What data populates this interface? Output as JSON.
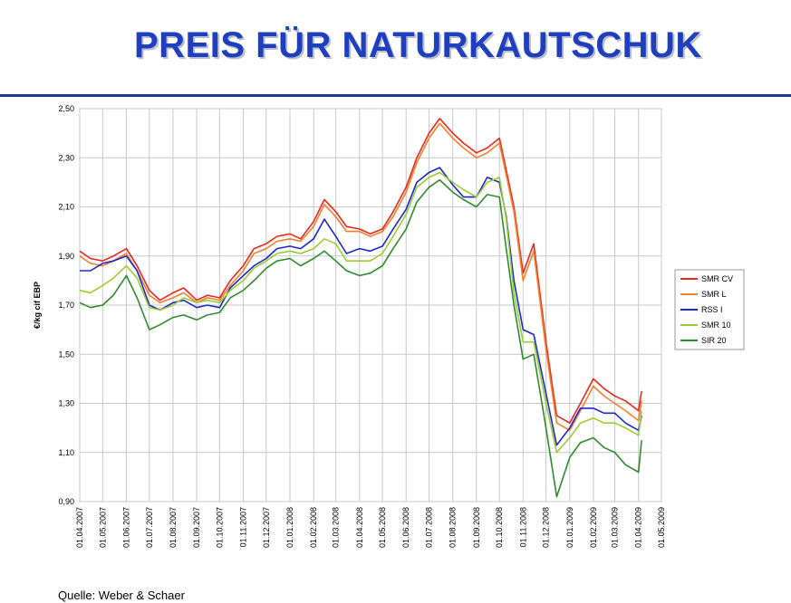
{
  "slide": {
    "title": "PREIS FÜR NATURKAUTSCHUK",
    "source": "Quelle: Weber & Schaer"
  },
  "chart_data": {
    "type": "line",
    "ylabel": "€/kg cif EBP",
    "xlabel": "",
    "ylim": [
      0.9,
      2.5
    ],
    "yticks": [
      0.9,
      1.1,
      1.3,
      1.5,
      1.7,
      1.9,
      2.1,
      2.3,
      2.5
    ],
    "ytick_labels": [
      "0,90",
      "1,10",
      "1,30",
      "1,50",
      "1,70",
      "1,90",
      "2,10",
      "2,30",
      "2,50"
    ],
    "x_range": [
      "2007-04-01",
      "2009-05-01"
    ],
    "x_ticks": [
      "2007-04-01",
      "2007-05-01",
      "2007-06-01",
      "2007-07-01",
      "2007-08-01",
      "2007-09-01",
      "2007-10-01",
      "2007-11-01",
      "2007-12-01",
      "2008-01-01",
      "2008-02-01",
      "2008-03-01",
      "2008-04-01",
      "2008-05-01",
      "2008-06-01",
      "2008-07-01",
      "2008-08-01",
      "2008-09-01",
      "2008-10-01",
      "2008-11-01",
      "2008-12-01",
      "2009-01-01",
      "2009-02-01",
      "2009-03-01",
      "2009-04-01",
      "2009-05-01"
    ],
    "x_tick_labels": [
      "01.04.2007",
      "01.05.2007",
      "01.06.2007",
      "01.07.2007",
      "01.08.2007",
      "01.09.2007",
      "01.10.2007",
      "01.11.2007",
      "01.12.2007",
      "01.01.2008",
      "01.02.2008",
      "01.03.2008",
      "01.04.2008",
      "01.05.2008",
      "01.06.2008",
      "01.07.2008",
      "01.08.2008",
      "01.09.2008",
      "01.10.2008",
      "01.11.2008",
      "01.12.2008",
      "01.01.2009",
      "01.02.2009",
      "01.03.2009",
      "01.04.2009",
      "01.05.2009"
    ],
    "grid": true,
    "legend_position": "right",
    "series": [
      {
        "name": "SMR CV",
        "color": "#e8281e",
        "x": [
          "2007-04-01",
          "2007-04-15",
          "2007-05-01",
          "2007-05-15",
          "2007-06-01",
          "2007-06-15",
          "2007-07-01",
          "2007-07-15",
          "2007-08-01",
          "2007-08-15",
          "2007-09-01",
          "2007-09-15",
          "2007-10-01",
          "2007-10-15",
          "2007-11-01",
          "2007-11-15",
          "2007-12-01",
          "2007-12-15",
          "2008-01-01",
          "2008-01-15",
          "2008-02-01",
          "2008-02-15",
          "2008-03-01",
          "2008-03-15",
          "2008-04-01",
          "2008-04-15",
          "2008-05-01",
          "2008-05-15",
          "2008-06-01",
          "2008-06-15",
          "2008-07-01",
          "2008-07-15",
          "2008-08-01",
          "2008-08-15",
          "2008-09-01",
          "2008-09-15",
          "2008-10-01",
          "2008-10-10",
          "2008-10-20",
          "2008-11-01",
          "2008-11-15",
          "2008-12-01",
          "2008-12-15",
          "2009-01-01",
          "2009-01-15",
          "2009-02-01",
          "2009-02-15",
          "2009-03-01",
          "2009-03-15",
          "2009-04-01",
          "2009-04-05"
        ],
        "values": [
          1.92,
          1.89,
          1.88,
          1.9,
          1.93,
          1.86,
          1.76,
          1.72,
          1.75,
          1.77,
          1.72,
          1.74,
          1.73,
          1.8,
          1.86,
          1.93,
          1.95,
          1.98,
          1.99,
          1.97,
          2.04,
          2.13,
          2.08,
          2.02,
          2.01,
          1.99,
          2.01,
          2.08,
          2.18,
          2.3,
          2.4,
          2.46,
          2.4,
          2.36,
          2.32,
          2.34,
          2.38,
          2.25,
          2.1,
          1.83,
          1.95,
          1.55,
          1.25,
          1.22,
          1.3,
          1.4,
          1.36,
          1.33,
          1.31,
          1.27,
          1.35
        ]
      },
      {
        "name": "SMR L",
        "color": "#f47f2a",
        "x": [
          "2007-04-01",
          "2007-04-15",
          "2007-05-01",
          "2007-05-15",
          "2007-06-01",
          "2007-06-15",
          "2007-07-01",
          "2007-07-15",
          "2007-08-01",
          "2007-08-15",
          "2007-09-01",
          "2007-09-15",
          "2007-10-01",
          "2007-10-15",
          "2007-11-01",
          "2007-11-15",
          "2007-12-01",
          "2007-12-15",
          "2008-01-01",
          "2008-01-15",
          "2008-02-01",
          "2008-02-15",
          "2008-03-01",
          "2008-03-15",
          "2008-04-01",
          "2008-04-15",
          "2008-05-01",
          "2008-05-15",
          "2008-06-01",
          "2008-06-15",
          "2008-07-01",
          "2008-07-15",
          "2008-08-01",
          "2008-08-15",
          "2008-09-01",
          "2008-09-15",
          "2008-10-01",
          "2008-10-10",
          "2008-10-20",
          "2008-11-01",
          "2008-11-15",
          "2008-12-01",
          "2008-12-15",
          "2009-01-01",
          "2009-01-15",
          "2009-02-01",
          "2009-02-15",
          "2009-03-01",
          "2009-03-15",
          "2009-04-01",
          "2009-04-05"
        ],
        "values": [
          1.9,
          1.87,
          1.86,
          1.88,
          1.91,
          1.84,
          1.74,
          1.71,
          1.73,
          1.75,
          1.71,
          1.73,
          1.72,
          1.78,
          1.84,
          1.91,
          1.93,
          1.96,
          1.97,
          1.96,
          2.02,
          2.11,
          2.06,
          2.0,
          2.0,
          1.98,
          2.0,
          2.06,
          2.16,
          2.28,
          2.38,
          2.44,
          2.38,
          2.34,
          2.3,
          2.32,
          2.36,
          2.23,
          2.08,
          1.8,
          1.92,
          1.52,
          1.22,
          1.19,
          1.27,
          1.37,
          1.33,
          1.3,
          1.27,
          1.23,
          1.31
        ]
      },
      {
        "name": "RSS I",
        "color": "#1c28c8",
        "x": [
          "2007-04-01",
          "2007-04-15",
          "2007-05-01",
          "2007-05-15",
          "2007-06-01",
          "2007-06-15",
          "2007-07-01",
          "2007-07-15",
          "2007-08-01",
          "2007-08-15",
          "2007-09-01",
          "2007-09-15",
          "2007-10-01",
          "2007-10-15",
          "2007-11-01",
          "2007-11-15",
          "2007-12-01",
          "2007-12-15",
          "2008-01-01",
          "2008-01-15",
          "2008-02-01",
          "2008-02-15",
          "2008-03-01",
          "2008-03-15",
          "2008-04-01",
          "2008-04-15",
          "2008-05-01",
          "2008-05-15",
          "2008-06-01",
          "2008-06-15",
          "2008-07-01",
          "2008-07-15",
          "2008-08-01",
          "2008-08-15",
          "2008-09-01",
          "2008-09-15",
          "2008-10-01",
          "2008-10-10",
          "2008-10-20",
          "2008-11-01",
          "2008-11-15",
          "2008-12-01",
          "2008-12-15",
          "2009-01-01",
          "2009-01-15",
          "2009-02-01",
          "2009-02-15",
          "2009-03-01",
          "2009-03-15",
          "2009-04-01",
          "2009-04-05"
        ],
        "values": [
          1.84,
          1.84,
          1.87,
          1.88,
          1.9,
          1.84,
          1.7,
          1.68,
          1.71,
          1.72,
          1.69,
          1.7,
          1.69,
          1.77,
          1.82,
          1.86,
          1.89,
          1.93,
          1.94,
          1.93,
          1.97,
          2.05,
          1.98,
          1.91,
          1.93,
          1.92,
          1.94,
          2.01,
          2.09,
          2.2,
          2.24,
          2.26,
          2.19,
          2.14,
          2.14,
          2.22,
          2.2,
          2.06,
          1.8,
          1.6,
          1.58,
          1.34,
          1.13,
          1.2,
          1.28,
          1.28,
          1.26,
          1.26,
          1.22,
          1.19,
          1.25
        ]
      },
      {
        "name": "SMR 10",
        "color": "#9acd32",
        "x": [
          "2007-04-01",
          "2007-04-15",
          "2007-05-01",
          "2007-05-15",
          "2007-06-01",
          "2007-06-15",
          "2007-07-01",
          "2007-07-15",
          "2007-08-01",
          "2007-08-15",
          "2007-09-01",
          "2007-09-15",
          "2007-10-01",
          "2007-10-15",
          "2007-11-01",
          "2007-11-15",
          "2007-12-01",
          "2007-12-15",
          "2008-01-01",
          "2008-01-15",
          "2008-02-01",
          "2008-02-15",
          "2008-03-01",
          "2008-03-15",
          "2008-04-01",
          "2008-04-15",
          "2008-05-01",
          "2008-05-15",
          "2008-06-01",
          "2008-06-15",
          "2008-07-01",
          "2008-07-15",
          "2008-08-01",
          "2008-08-15",
          "2008-09-01",
          "2008-09-15",
          "2008-10-01",
          "2008-10-10",
          "2008-10-20",
          "2008-11-01",
          "2008-11-15",
          "2008-12-01",
          "2008-12-15",
          "2009-01-01",
          "2009-01-15",
          "2009-02-01",
          "2009-02-15",
          "2009-03-01",
          "2009-03-15",
          "2009-04-01",
          "2009-04-05"
        ],
        "values": [
          1.76,
          1.75,
          1.78,
          1.81,
          1.86,
          1.81,
          1.69,
          1.68,
          1.7,
          1.73,
          1.71,
          1.72,
          1.71,
          1.76,
          1.8,
          1.85,
          1.88,
          1.91,
          1.92,
          1.91,
          1.93,
          1.97,
          1.95,
          1.88,
          1.88,
          1.88,
          1.91,
          1.98,
          2.07,
          2.18,
          2.22,
          2.24,
          2.2,
          2.17,
          2.14,
          2.2,
          2.22,
          2.05,
          1.75,
          1.55,
          1.55,
          1.3,
          1.1,
          1.16,
          1.22,
          1.24,
          1.22,
          1.22,
          1.2,
          1.17,
          1.27
        ]
      },
      {
        "name": "SIR 20",
        "color": "#2e8b2e",
        "x": [
          "2007-04-01",
          "2007-04-15",
          "2007-05-01",
          "2007-05-15",
          "2007-06-01",
          "2007-06-15",
          "2007-07-01",
          "2007-07-15",
          "2007-08-01",
          "2007-08-15",
          "2007-09-01",
          "2007-09-15",
          "2007-10-01",
          "2007-10-15",
          "2007-11-01",
          "2007-11-15",
          "2007-12-01",
          "2007-12-15",
          "2008-01-01",
          "2008-01-15",
          "2008-02-01",
          "2008-02-15",
          "2008-03-01",
          "2008-03-15",
          "2008-04-01",
          "2008-04-15",
          "2008-05-01",
          "2008-05-15",
          "2008-06-01",
          "2008-06-15",
          "2008-07-01",
          "2008-07-15",
          "2008-08-01",
          "2008-08-15",
          "2008-09-01",
          "2008-09-15",
          "2008-10-01",
          "2008-10-10",
          "2008-10-20",
          "2008-11-01",
          "2008-11-15",
          "2008-12-01",
          "2008-12-15",
          "2009-01-01",
          "2009-01-15",
          "2009-02-01",
          "2009-02-15",
          "2009-03-01",
          "2009-03-15",
          "2009-04-01",
          "2009-04-05"
        ],
        "values": [
          1.71,
          1.69,
          1.7,
          1.74,
          1.82,
          1.73,
          1.6,
          1.62,
          1.65,
          1.66,
          1.64,
          1.66,
          1.67,
          1.73,
          1.76,
          1.8,
          1.85,
          1.88,
          1.89,
          1.86,
          1.89,
          1.92,
          1.88,
          1.84,
          1.82,
          1.83,
          1.86,
          1.93,
          2.01,
          2.12,
          2.18,
          2.21,
          2.16,
          2.13,
          2.1,
          2.15,
          2.14,
          1.93,
          1.7,
          1.48,
          1.5,
          1.2,
          0.92,
          1.08,
          1.14,
          1.16,
          1.12,
          1.1,
          1.05,
          1.02,
          1.15
        ]
      }
    ]
  }
}
